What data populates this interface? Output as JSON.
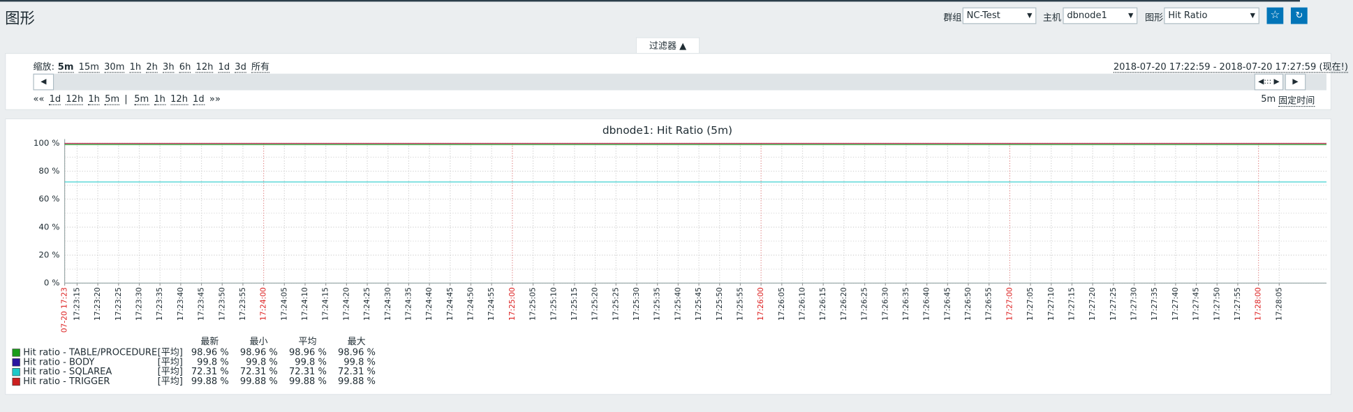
{
  "header": {
    "title": "图形",
    "filters": [
      {
        "label": "群组",
        "value": "NC-Test"
      },
      {
        "label": "主机",
        "value": "dbnode1"
      },
      {
        "label": "图形",
        "value": "Hit Ratio"
      }
    ]
  },
  "filter": {
    "tab": "过滤器 ▲",
    "zoom_label": "缩放:",
    "zoom_options": [
      "5m",
      "15m",
      "30m",
      "1h",
      "2h",
      "3h",
      "6h",
      "12h",
      "1d",
      "3d",
      "所有"
    ],
    "time_range": "2018-07-20 17:22:59 - 2018-07-20 17:27:59 (现在!)",
    "nav_back": [
      "««",
      "1d",
      "12h",
      "1h",
      "5m"
    ],
    "separator": "|",
    "nav_forward": [
      "5m",
      "1h",
      "12h",
      "1d",
      "»»"
    ],
    "period": "5m",
    "fixed": "固定时间"
  },
  "chart_data": {
    "type": "line",
    "title": "dbnode1: Hit Ratio (5m)",
    "categories": [
      "07-20 17:23",
      "17:23:15",
      "17:23:20",
      "17:23:25",
      "17:23:30",
      "17:23:35",
      "17:23:40",
      "17:23:45",
      "17:23:50",
      "17:23:55",
      "17:24:00",
      "17:24:05",
      "17:24:10",
      "17:24:15",
      "17:24:20",
      "17:24:25",
      "17:24:30",
      "17:24:35",
      "17:24:40",
      "17:24:45",
      "17:24:50",
      "17:24:55",
      "17:25:00",
      "17:25:05",
      "17:25:10",
      "17:25:15",
      "17:25:20",
      "17:25:25",
      "17:25:30",
      "17:25:35",
      "17:25:40",
      "17:25:45",
      "17:25:50",
      "17:25:55",
      "17:26:00",
      "17:26:05",
      "17:26:10",
      "17:26:15",
      "17:26:20",
      "17:26:25",
      "17:26:30",
      "17:26:35",
      "17:26:40",
      "17:26:45",
      "17:26:50",
      "17:26:55",
      "17:27:00",
      "17:27:05",
      "17:27:10",
      "17:27:15",
      "17:27:20",
      "17:27:25",
      "17:27:30",
      "17:27:35",
      "17:27:40",
      "17:27:45",
      "17:27:50",
      "17:27:55",
      "17:28:00",
      "17:28:05"
    ],
    "ylim": [
      0,
      100
    ],
    "yticks": [
      {
        "value": 0,
        "label": "0 %"
      },
      {
        "value": 20,
        "label": "20 %"
      },
      {
        "value": 40,
        "label": "40 %"
      },
      {
        "value": 60,
        "label": "60 %"
      },
      {
        "value": 80,
        "label": "80 %"
      },
      {
        "value": 100,
        "label": "100 %"
      }
    ],
    "grid": true,
    "legend_columns": [
      "最新",
      "最小",
      "平均",
      "最大"
    ],
    "series": [
      {
        "name": "Hit ratio - TABLE/PROCEDURE",
        "color": "#1a9c1a",
        "function": "[平均]",
        "stats": [
          98.96,
          98.96,
          98.96,
          98.96
        ],
        "value_labels": [
          "98.96 %",
          "98.96 %",
          "98.96 %",
          "98.96 %"
        ]
      },
      {
        "name": "Hit ratio - BODY",
        "color": "#2a16a0",
        "function": "[平均]",
        "stats": [
          99.8,
          99.8,
          99.8,
          99.8
        ],
        "value_labels": [
          "99.8 %",
          "99.8 %",
          "99.8 %",
          "99.8 %"
        ]
      },
      {
        "name": "Hit ratio - SQLAREA",
        "color": "#1ec8c8",
        "function": "[平均]",
        "stats": [
          72.31,
          72.31,
          72.31,
          72.31
        ],
        "value_labels": [
          "72.31 %",
          "72.31 %",
          "72.31 %",
          "72.31 %"
        ]
      },
      {
        "name": "Hit ratio - TRIGGER",
        "color": "#cc2020",
        "function": "[平均]",
        "stats": [
          99.88,
          99.88,
          99.88,
          99.88
        ],
        "value_labels": [
          "99.88 %",
          "99.88 %",
          "99.88 %",
          "99.88 %"
        ]
      }
    ]
  }
}
